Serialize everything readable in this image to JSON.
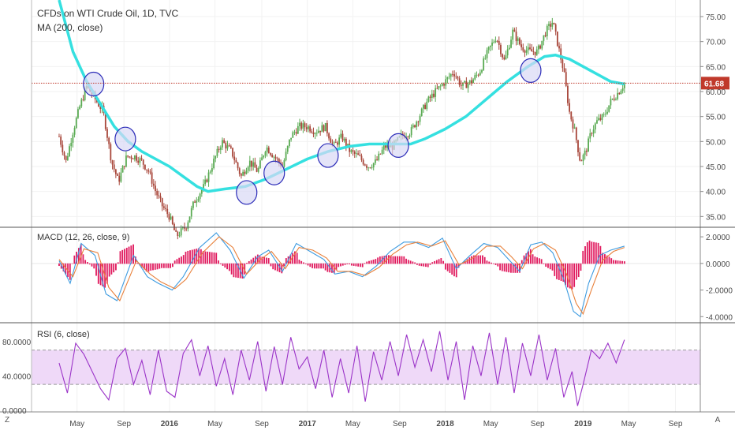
{
  "main": {
    "title": "CFDs on WTI Crude Oil, 1D, TVC",
    "ma_label": "MA (200, close)",
    "last_price": "61.68",
    "last_price_color": "#c0392b",
    "candle_up_color": "#59aa52",
    "candle_down_color": "#a8463a",
    "ma_color": "#35e0e0",
    "circle_fill": "#d8d8f5",
    "circle_stroke": "#2b2bb8"
  },
  "macd": {
    "label": "MACD (12, 26, close, 9)",
    "macd_color": "#3d9be0",
    "signal_color": "#e8803a",
    "hist_color": "#e01a5e"
  },
  "rsi": {
    "label": "RSI (6, close)",
    "line_color": "#9b34c8",
    "band_color": "#efd9f8"
  },
  "corner": {
    "left": "Z",
    "right": "A"
  },
  "chart_data": [
    {
      "type": "candlestick",
      "title": "CFDs on WTI Crude Oil, 1D, TVC",
      "ylim": [
        33,
        78
      ],
      "yticks": [
        "75.00",
        "70.00",
        "65.00",
        "60.00",
        "55.00",
        "50.00",
        "45.00",
        "40.00",
        "35.00"
      ],
      "xticks": [
        "May",
        "Sep",
        "2016",
        "May",
        "Sep",
        "2017",
        "May",
        "Sep",
        "2018",
        "May",
        "Sep",
        "2019",
        "May",
        "Sep"
      ],
      "price_path": [
        [
          2015.2,
          51
        ],
        [
          2015.25,
          46
        ],
        [
          2015.3,
          52
        ],
        [
          2015.35,
          57
        ],
        [
          2015.4,
          61
        ],
        [
          2015.45,
          59
        ],
        [
          2015.52,
          56
        ],
        [
          2015.58,
          46
        ],
        [
          2015.63,
          42
        ],
        [
          2015.69,
          47
        ],
        [
          2015.75,
          47
        ],
        [
          2015.8,
          46
        ],
        [
          2015.85,
          44
        ],
        [
          2015.9,
          40
        ],
        [
          2015.95,
          37
        ],
        [
          2016.0,
          35
        ],
        [
          2016.05,
          31
        ],
        [
          2016.12,
          33
        ],
        [
          2016.18,
          38
        ],
        [
          2016.25,
          41
        ],
        [
          2016.32,
          46
        ],
        [
          2016.38,
          50
        ],
        [
          2016.45,
          48
        ],
        [
          2016.52,
          43
        ],
        [
          2016.58,
          46
        ],
        [
          2016.64,
          44
        ],
        [
          2016.7,
          49
        ],
        [
          2016.76,
          47
        ],
        [
          2016.82,
          45
        ],
        [
          2016.88,
          51
        ],
        [
          2016.94,
          53
        ],
        [
          2017.0,
          53
        ],
        [
          2017.06,
          52
        ],
        [
          2017.13,
          53
        ],
        [
          2017.19,
          49
        ],
        [
          2017.25,
          51
        ],
        [
          2017.31,
          48
        ],
        [
          2017.37,
          47
        ],
        [
          2017.44,
          45
        ],
        [
          2017.5,
          46
        ],
        [
          2017.56,
          49
        ],
        [
          2017.62,
          49
        ],
        [
          2017.68,
          51
        ],
        [
          2017.75,
          52
        ],
        [
          2017.81,
          55
        ],
        [
          2017.87,
          58
        ],
        [
          2017.93,
          60
        ],
        [
          2018.0,
          62
        ],
        [
          2018.06,
          64
        ],
        [
          2018.12,
          61
        ],
        [
          2018.19,
          62
        ],
        [
          2018.25,
          64
        ],
        [
          2018.31,
          68
        ],
        [
          2018.37,
          71
        ],
        [
          2018.43,
          66
        ],
        [
          2018.49,
          72
        ],
        [
          2018.55,
          69
        ],
        [
          2018.61,
          68
        ],
        [
          2018.67,
          68
        ],
        [
          2018.73,
          72
        ],
        [
          2018.78,
          74
        ],
        [
          2018.82,
          69
        ],
        [
          2018.86,
          64
        ],
        [
          2018.9,
          56
        ],
        [
          2018.94,
          52
        ],
        [
          2018.98,
          46
        ],
        [
          2019.02,
          48
        ],
        [
          2019.06,
          52
        ],
        [
          2019.1,
          54
        ],
        [
          2019.15,
          55
        ],
        [
          2019.2,
          58
        ],
        [
          2019.26,
          60
        ],
        [
          2019.3,
          61.68
        ]
      ],
      "ma200": [
        [
          2015.2,
          80
        ],
        [
          2015.3,
          68
        ],
        [
          2015.4,
          62
        ],
        [
          2015.5,
          57.5
        ],
        [
          2015.6,
          53
        ],
        [
          2015.7,
          50
        ],
        [
          2015.8,
          48
        ],
        [
          2015.9,
          46.5
        ],
        [
          2016.0,
          45
        ],
        [
          2016.1,
          43
        ],
        [
          2016.2,
          41
        ],
        [
          2016.28,
          40
        ],
        [
          2016.4,
          40.5
        ],
        [
          2016.55,
          41
        ],
        [
          2016.7,
          42.5
        ],
        [
          2016.85,
          44.5
        ],
        [
          2017.0,
          46.5
        ],
        [
          2017.15,
          48
        ],
        [
          2017.3,
          49
        ],
        [
          2017.45,
          49.5
        ],
        [
          2017.6,
          49.5
        ],
        [
          2017.75,
          49.5
        ],
        [
          2017.85,
          50.5
        ],
        [
          2018.0,
          52.5
        ],
        [
          2018.15,
          55
        ],
        [
          2018.3,
          58.5
        ],
        [
          2018.45,
          62
        ],
        [
          2018.6,
          65
        ],
        [
          2018.72,
          67
        ],
        [
          2018.8,
          67.3
        ],
        [
          2018.9,
          66.5
        ],
        [
          2019.0,
          65
        ],
        [
          2019.1,
          63.5
        ],
        [
          2019.2,
          62
        ],
        [
          2019.3,
          61.5
        ]
      ],
      "annotations": [
        [
          2015.45,
          61.5
        ],
        [
          2015.68,
          50.5
        ],
        [
          2016.56,
          39.8
        ],
        [
          2016.76,
          43.7
        ],
        [
          2017.15,
          47.2
        ],
        [
          2017.66,
          49.2
        ],
        [
          2018.62,
          64.2
        ]
      ]
    },
    {
      "type": "line",
      "title": "MACD (12, 26, close, 9)",
      "ylim": [
        -4.4,
        2.6
      ],
      "yticks": [
        "2.0000",
        "0.0000",
        "-2.0000",
        "-4.0000"
      ],
      "series": [
        {
          "name": "MACD",
          "values": [
            [
              2015.2,
              0.2
            ],
            [
              2015.28,
              -1.5
            ],
            [
              2015.36,
              1.5
            ],
            [
              2015.46,
              0.6
            ],
            [
              2015.54,
              -2.3
            ],
            [
              2015.62,
              -2.8
            ],
            [
              2015.74,
              0.6
            ],
            [
              2015.84,
              -1.0
            ],
            [
              2015.92,
              -1.5
            ],
            [
              2016.02,
              -2.0
            ],
            [
              2016.1,
              -1.0
            ],
            [
              2016.22,
              1.2
            ],
            [
              2016.34,
              2.3
            ],
            [
              2016.44,
              1.0
            ],
            [
              2016.54,
              -1.1
            ],
            [
              2016.64,
              0.5
            ],
            [
              2016.72,
              1.0
            ],
            [
              2016.82,
              -0.6
            ],
            [
              2016.92,
              1.5
            ],
            [
              2017.02,
              0.9
            ],
            [
              2017.12,
              0.3
            ],
            [
              2017.2,
              -0.8
            ],
            [
              2017.3,
              -0.6
            ],
            [
              2017.4,
              -1.0
            ],
            [
              2017.5,
              -0.2
            ],
            [
              2017.6,
              0.9
            ],
            [
              2017.7,
              1.6
            ],
            [
              2017.78,
              1.6
            ],
            [
              2017.88,
              1.2
            ],
            [
              2017.98,
              1.9
            ],
            [
              2018.08,
              -0.4
            ],
            [
              2018.18,
              0.6
            ],
            [
              2018.28,
              1.5
            ],
            [
              2018.38,
              1.2
            ],
            [
              2018.46,
              0.3
            ],
            [
              2018.54,
              -0.6
            ],
            [
              2018.62,
              1.4
            ],
            [
              2018.7,
              1.6
            ],
            [
              2018.78,
              0.8
            ],
            [
              2018.86,
              -1.2
            ],
            [
              2018.93,
              -3.6
            ],
            [
              2018.98,
              -4.0
            ],
            [
              2019.04,
              -1.5
            ],
            [
              2019.12,
              0.6
            ],
            [
              2019.2,
              1.0
            ],
            [
              2019.3,
              1.3
            ]
          ]
        },
        {
          "name": "Signal",
          "values": [
            [
              2015.2,
              0.3
            ],
            [
              2015.3,
              -1.0
            ],
            [
              2015.38,
              1.1
            ],
            [
              2015.48,
              0.8
            ],
            [
              2015.56,
              -1.8
            ],
            [
              2015.64,
              -2.8
            ],
            [
              2015.76,
              0.2
            ],
            [
              2015.86,
              -0.8
            ],
            [
              2015.94,
              -1.4
            ],
            [
              2016.04,
              -1.9
            ],
            [
              2016.12,
              -1.2
            ],
            [
              2016.24,
              0.8
            ],
            [
              2016.36,
              2.0
            ],
            [
              2016.46,
              1.2
            ],
            [
              2016.56,
              -0.8
            ],
            [
              2016.66,
              0.3
            ],
            [
              2016.74,
              0.9
            ],
            [
              2016.84,
              -0.4
            ],
            [
              2016.94,
              1.2
            ],
            [
              2017.04,
              1.0
            ],
            [
              2017.14,
              0.4
            ],
            [
              2017.22,
              -0.6
            ],
            [
              2017.32,
              -0.6
            ],
            [
              2017.42,
              -0.9
            ],
            [
              2017.52,
              -0.3
            ],
            [
              2017.62,
              0.7
            ],
            [
              2017.72,
              1.4
            ],
            [
              2017.8,
              1.6
            ],
            [
              2017.9,
              1.3
            ],
            [
              2018.0,
              1.7
            ],
            [
              2018.1,
              -0.1
            ],
            [
              2018.2,
              0.4
            ],
            [
              2018.3,
              1.3
            ],
            [
              2018.4,
              1.3
            ],
            [
              2018.48,
              0.5
            ],
            [
              2018.56,
              -0.4
            ],
            [
              2018.64,
              1.1
            ],
            [
              2018.72,
              1.5
            ],
            [
              2018.8,
              1.0
            ],
            [
              2018.88,
              -0.8
            ],
            [
              2018.95,
              -3.0
            ],
            [
              2019.0,
              -3.8
            ],
            [
              2019.06,
              -2.0
            ],
            [
              2019.14,
              0.2
            ],
            [
              2019.22,
              0.9
            ],
            [
              2019.3,
              1.2
            ]
          ]
        }
      ]
    },
    {
      "type": "line",
      "title": "RSI (6, close)",
      "ylim": [
        -2,
        100
      ],
      "yticks": [
        "80.0000",
        "40.0000",
        "0.0000"
      ],
      "band": [
        30,
        70
      ],
      "series": [
        {
          "name": "RSI",
          "values": [
            [
              2015.2,
              55
            ],
            [
              2015.26,
              20
            ],
            [
              2015.32,
              78
            ],
            [
              2015.38,
              65
            ],
            [
              2015.44,
              45
            ],
            [
              2015.5,
              25
            ],
            [
              2015.56,
              12
            ],
            [
              2015.62,
              60
            ],
            [
              2015.68,
              72
            ],
            [
              2015.74,
              30
            ],
            [
              2015.8,
              58
            ],
            [
              2015.86,
              18
            ],
            [
              2015.92,
              70
            ],
            [
              2015.98,
              22
            ],
            [
              2016.04,
              15
            ],
            [
              2016.1,
              66
            ],
            [
              2016.16,
              82
            ],
            [
              2016.22,
              40
            ],
            [
              2016.28,
              75
            ],
            [
              2016.34,
              28
            ],
            [
              2016.4,
              60
            ],
            [
              2016.46,
              18
            ],
            [
              2016.52,
              70
            ],
            [
              2016.58,
              35
            ],
            [
              2016.64,
              80
            ],
            [
              2016.7,
              22
            ],
            [
              2016.76,
              74
            ],
            [
              2016.82,
              30
            ],
            [
              2016.88,
              85
            ],
            [
              2016.94,
              48
            ],
            [
              2017.0,
              62
            ],
            [
              2017.06,
              25
            ],
            [
              2017.12,
              70
            ],
            [
              2017.18,
              15
            ],
            [
              2017.24,
              60
            ],
            [
              2017.3,
              20
            ],
            [
              2017.36,
              75
            ],
            [
              2017.42,
              10
            ],
            [
              2017.48,
              68
            ],
            [
              2017.54,
              35
            ],
            [
              2017.6,
              80
            ],
            [
              2017.66,
              40
            ],
            [
              2017.72,
              88
            ],
            [
              2017.78,
              50
            ],
            [
              2017.84,
              82
            ],
            [
              2017.9,
              45
            ],
            [
              2017.96,
              92
            ],
            [
              2018.02,
              35
            ],
            [
              2018.08,
              80
            ],
            [
              2018.14,
              12
            ],
            [
              2018.2,
              75
            ],
            [
              2018.26,
              40
            ],
            [
              2018.32,
              90
            ],
            [
              2018.38,
              30
            ],
            [
              2018.44,
              85
            ],
            [
              2018.5,
              20
            ],
            [
              2018.56,
              78
            ],
            [
              2018.62,
              40
            ],
            [
              2018.68,
              88
            ],
            [
              2018.74,
              35
            ],
            [
              2018.8,
              72
            ],
            [
              2018.86,
              15
            ],
            [
              2018.92,
              45
            ],
            [
              2018.96,
              5
            ],
            [
              2019.0,
              30
            ],
            [
              2019.06,
              70
            ],
            [
              2019.12,
              60
            ],
            [
              2019.18,
              78
            ],
            [
              2019.24,
              55
            ],
            [
              2019.3,
              82
            ]
          ]
        }
      ]
    }
  ]
}
